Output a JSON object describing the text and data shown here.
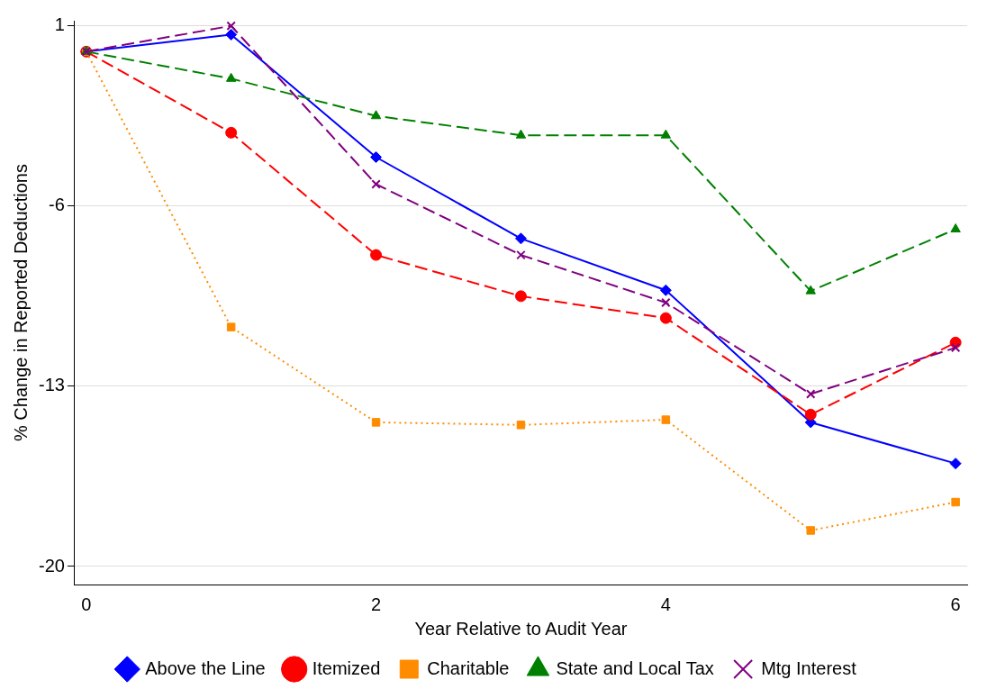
{
  "chart_data": {
    "type": "line",
    "xlabel": "Year Relative to Audit Year",
    "ylabel": "% Change in Reported Deductions",
    "x": [
      0,
      1,
      2,
      3,
      4,
      5,
      6
    ],
    "series": [
      {
        "name": "Above the Line",
        "color": "#0000ff",
        "marker": "diamond",
        "line_style": "solid",
        "values": [
          0,
          0.66,
          -4.1,
          -7.26,
          -9.27,
          -14.4,
          -16.0
        ]
      },
      {
        "name": "Itemized",
        "color": "#ff0000",
        "marker": "circle",
        "line_style": "dashed",
        "values": [
          0,
          -3.15,
          -7.9,
          -9.5,
          -10.35,
          -14.1,
          -11.3
        ]
      },
      {
        "name": "Charitable",
        "color": "#ff8c00",
        "marker": "square",
        "line_style": "dotted",
        "values": [
          0,
          -10.7,
          -14.4,
          -14.5,
          -14.3,
          -18.6,
          -17.5
        ]
      },
      {
        "name": "State and Local Tax",
        "color": "#008000",
        "marker": "triangle",
        "line_style": "dashed",
        "values": [
          0,
          -1.05,
          -2.5,
          -3.25,
          -3.25,
          -9.3,
          -6.9
        ]
      },
      {
        "name": "Mtg Interest",
        "color": "#800080",
        "marker": "cross",
        "line_style": "dashed",
        "values": [
          0,
          1.0,
          -5.15,
          -7.9,
          -9.75,
          -13.3,
          -11.5
        ]
      }
    ],
    "xlim": [
      -0.08,
      6.08
    ],
    "ylim": [
      -20.7,
      1.2
    ],
    "xticks": [
      0,
      2,
      4,
      6
    ],
    "yticks": [
      1,
      -6,
      -13,
      -20
    ],
    "grid": "y",
    "legend": "bottom"
  }
}
